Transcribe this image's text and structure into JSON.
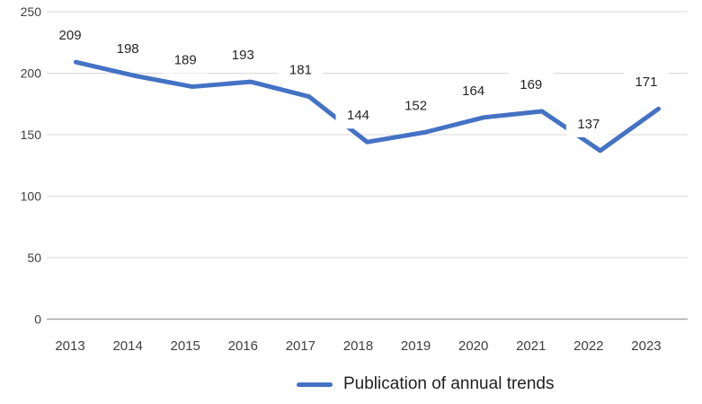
{
  "chart": {
    "line_color": "#4472C4",
    "gridline_color": "#D9D9D9",
    "axis_line_color": "#A6A6A6",
    "axis_label_color": "#3f3f3f",
    "data_label_color": "#262626",
    "background_color": "#ffffff",
    "legend": {
      "label": "Publication of annual trends",
      "marker_color": "#4472C4",
      "text_color": "#1f1f1f"
    }
  },
  "chart_data": {
    "type": "line",
    "categories": [
      "2013",
      "2014",
      "2015",
      "2016",
      "2017",
      "2018",
      "2019",
      "2020",
      "2021",
      "2022",
      "2023"
    ],
    "series": [
      {
        "name": "Publication of annual trends",
        "values": [
          209,
          198,
          189,
          193,
          181,
          144,
          152,
          164,
          169,
          137,
          171
        ],
        "color": "#4472C4"
      }
    ],
    "title": "",
    "xlabel": "",
    "ylabel": "",
    "ylim": [
      0,
      250
    ],
    "yticks": [
      0,
      50,
      100,
      150,
      200,
      250
    ],
    "grid": true,
    "data_labels": true,
    "legend_position": "bottom",
    "line_width": 5
  }
}
